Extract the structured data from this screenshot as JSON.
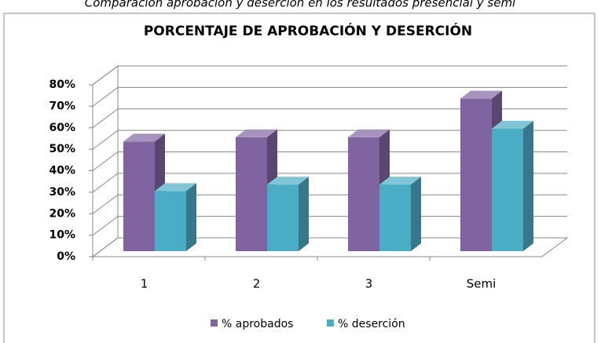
{
  "chart_data": {
    "type": "bar3d",
    "caption": "Comparación aprobación y deserción en los resultados presencial y semi",
    "title": "PORCENTAJE DE APROBACIÓN Y DESERCIÓN",
    "categories": [
      "1",
      "2",
      "3",
      "Semi"
    ],
    "series": [
      {
        "name": "% aprobados",
        "color": "#8064a2",
        "values": [
          51,
          53,
          53,
          71
        ]
      },
      {
        "name": "% deserción",
        "color": "#4bacc6",
        "values": [
          28,
          31,
          31,
          57
        ]
      }
    ],
    "ylim": [
      0,
      80
    ],
    "yticks": [
      {
        "value": 0,
        "label": "0%"
      },
      {
        "value": 10,
        "label": "10%"
      },
      {
        "value": 20,
        "label": "20%"
      },
      {
        "value": 30,
        "label": "30%"
      },
      {
        "value": 40,
        "label": "40%"
      },
      {
        "value": 50,
        "label": "50%"
      },
      {
        "value": 60,
        "label": "60%"
      },
      {
        "value": 70,
        "label": "70%"
      },
      {
        "value": 80,
        "label": "80%"
      }
    ],
    "grid": true,
    "legend": "bottom"
  }
}
